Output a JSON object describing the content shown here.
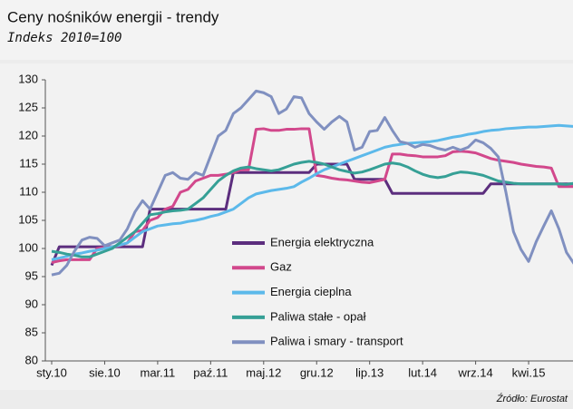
{
  "chart_data": {
    "type": "line",
    "title": "Ceny nośników energii - trendy",
    "subtitle": "Indeks 2010=100",
    "source": "Źródło: Eurostat",
    "categories": [
      "sty.10",
      null,
      null,
      null,
      null,
      null,
      null,
      "sie.10",
      null,
      null,
      null,
      null,
      null,
      null,
      "mar.11",
      null,
      null,
      null,
      null,
      null,
      null,
      "paź.11",
      null,
      null,
      null,
      null,
      null,
      null,
      "maj.12",
      null,
      null,
      null,
      null,
      null,
      null,
      "gru.12",
      null,
      null,
      null,
      null,
      null,
      null,
      "lip.13",
      null,
      null,
      null,
      null,
      null,
      null,
      "lut.14",
      null,
      null,
      null,
      null,
      null,
      null,
      "wrz.14",
      null,
      null,
      null,
      null,
      null,
      null,
      "kwi.15",
      null,
      null,
      null,
      null,
      null,
      null
    ],
    "ylim": [
      80,
      130
    ],
    "yticks": [
      80,
      85,
      90,
      95,
      100,
      105,
      110,
      115,
      120,
      125,
      130
    ],
    "grid": false,
    "legend": "lower center",
    "series": [
      {
        "name": "Energia elektryczna",
        "color": "#5c2e7e",
        "values": [
          97,
          100.3,
          100.3,
          100.3,
          100.3,
          100.3,
          100.3,
          100.3,
          100.3,
          100.3,
          100.3,
          100.3,
          100.3,
          107,
          107,
          107,
          107,
          107,
          107,
          107,
          107,
          107,
          107,
          107,
          113.5,
          113.5,
          113.5,
          113.5,
          113.5,
          113.5,
          113.5,
          113.5,
          113.5,
          113.5,
          113.5,
          115,
          115,
          115,
          115,
          115,
          112.3,
          112.3,
          112.3,
          112.3,
          112.3,
          109.8,
          109.8,
          109.8,
          109.8,
          109.8,
          109.8,
          109.8,
          109.8,
          109.8,
          109.8,
          109.8,
          109.8,
          109.8,
          111.5,
          111.5,
          111.5,
          111.5,
          111.5,
          111.5,
          111.5,
          111.5,
          111.5,
          111.5,
          111.5,
          111.5
        ]
      },
      {
        "name": "Gaz",
        "color": "#d2488c",
        "values": [
          97.5,
          97.8,
          98,
          98,
          98,
          98,
          100,
          100.2,
          100.3,
          100.5,
          101,
          103,
          103.2,
          105,
          105.5,
          107,
          107.5,
          110,
          110.5,
          112,
          112.5,
          113,
          113,
          113.2,
          113.5,
          114,
          114,
          121.2,
          121.3,
          121,
          121,
          121.2,
          121.2,
          121.3,
          121.3,
          113,
          112.8,
          112.5,
          112.3,
          112.2,
          112,
          111.8,
          111.7,
          112,
          112.3,
          116.8,
          116.8,
          116.6,
          116.5,
          116.3,
          116.3,
          116.3,
          116.5,
          117.2,
          117.3,
          117.2,
          117,
          116.5,
          116,
          115.7,
          115.5,
          115.3,
          115,
          114.8,
          114.6,
          114.5,
          114.3,
          111,
          111,
          111
        ]
      },
      {
        "name": "Energia cieplna",
        "color": "#5cb9ea",
        "values": [
          98,
          98.3,
          98.6,
          99,
          99.2,
          99.5,
          99.7,
          100,
          100.3,
          100.6,
          101,
          102,
          103,
          103.5,
          104,
          104.2,
          104.4,
          104.5,
          104.8,
          105,
          105.3,
          105.7,
          106,
          106.5,
          107,
          108,
          109,
          109.7,
          110,
          110.3,
          110.5,
          110.7,
          111,
          111.8,
          112.5,
          113.3,
          114,
          114.5,
          115,
          115.5,
          116,
          116.5,
          117,
          117.5,
          118,
          118.3,
          118.5,
          118.7,
          118.8,
          118.9,
          119,
          119.2,
          119.5,
          119.8,
          120,
          120.3,
          120.5,
          120.8,
          121,
          121.1,
          121.3,
          121.4,
          121.5,
          121.6,
          121.6,
          121.7,
          121.8,
          121.9,
          121.8,
          121.7
        ]
      },
      {
        "name": "Paliwa stałe - opał",
        "color": "#36a096",
        "values": [
          99.5,
          99.3,
          99,
          98.8,
          98.5,
          98.5,
          99,
          99.5,
          100,
          101,
          102,
          103,
          104.5,
          106,
          106.2,
          106.5,
          106.7,
          106.8,
          107,
          108,
          109,
          110.5,
          112,
          113,
          113.8,
          114.3,
          114.5,
          114.2,
          114,
          113.8,
          114,
          114.5,
          115,
          115.3,
          115.5,
          115.3,
          115,
          114.5,
          114,
          113.7,
          113.4,
          113.6,
          114,
          114.5,
          115,
          115.2,
          115,
          114.5,
          113.8,
          113.2,
          112.8,
          112.6,
          112.8,
          113.3,
          113.6,
          113.5,
          113.3,
          113,
          112.5,
          112,
          111.8,
          111.6,
          111.5,
          111.5,
          111.5,
          111.5,
          111.5,
          111.5,
          111.4,
          111.6
        ]
      },
      {
        "name": "Paliwa i smary - transport",
        "color": "#8090c0",
        "values": [
          95.3,
          95.6,
          97,
          99.5,
          101.5,
          102,
          101.8,
          100.5,
          101,
          101.5,
          103.5,
          106.5,
          108.5,
          107,
          110,
          113,
          113.5,
          112.5,
          112.3,
          113.5,
          113,
          116.5,
          120,
          121,
          124,
          125,
          126.5,
          128,
          127.7,
          127,
          124,
          124.8,
          127,
          126.8,
          124,
          122.5,
          121.2,
          122.5,
          123.5,
          122.5,
          117.5,
          118,
          120.8,
          121,
          123.3,
          121,
          119,
          118.7,
          118,
          118.5,
          118.3,
          117.8,
          117.5,
          118,
          117.5,
          118,
          119.3,
          118.8,
          117.8,
          116.3,
          110,
          103,
          99.8,
          97.7,
          101.2,
          104,
          106.7,
          103.5,
          99.3,
          97.3
        ]
      }
    ]
  }
}
